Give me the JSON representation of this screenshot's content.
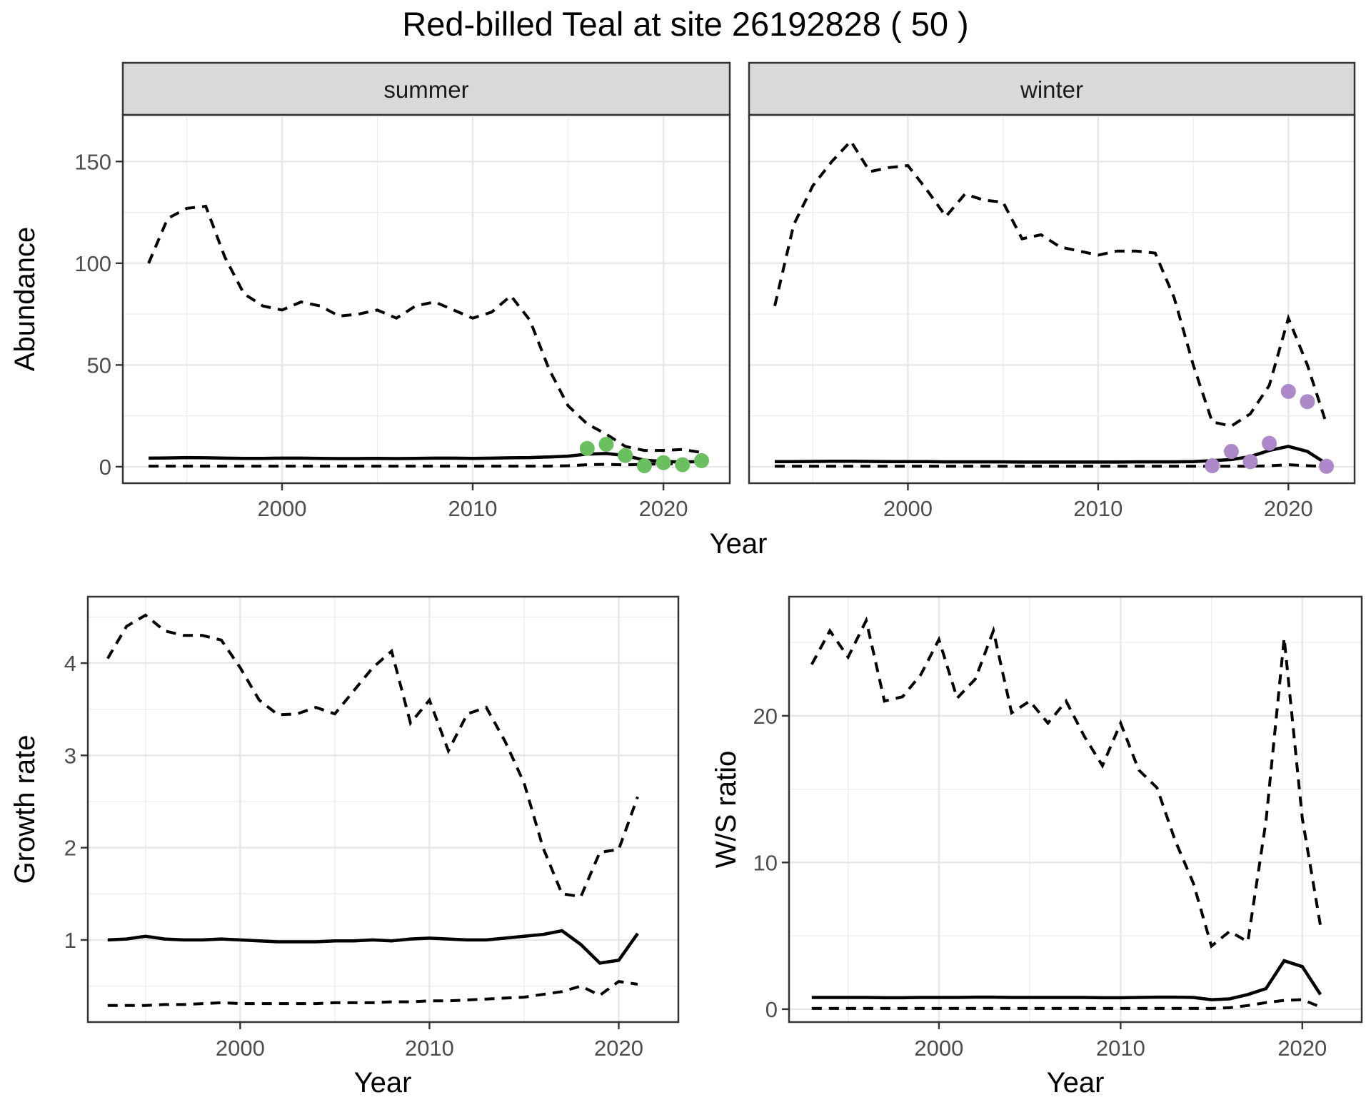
{
  "title": "Red-billed Teal at site 26192828 ( 50 )",
  "facets": {
    "summer_label": "summer",
    "winter_label": "winter"
  },
  "axis_titles": {
    "abundance": "Abundance",
    "year_top": "Year",
    "growth_rate": "Growth rate",
    "year_bottom_left": "Year",
    "ws_ratio": "W/S ratio",
    "year_bottom_right": "Year"
  },
  "colors": {
    "summer_points": "#6abf5f",
    "winter_points": "#ad89c9",
    "ci_line": "#000000",
    "median_line": "#000000",
    "strip_bg": "#d9d9d9",
    "grid_major": "#e7e7e7",
    "tick_text": "#4d4d4d",
    "panel_border": "#333333"
  },
  "chart_data": [
    {
      "id": "abundance_summer",
      "type": "line",
      "title": "summer",
      "xlabel": "Year",
      "ylabel": "Abundance",
      "x_ticks": [
        2000,
        2010,
        2020
      ],
      "y_ticks": [
        0,
        50,
        100,
        150
      ],
      "x_minor": [
        1995,
        2005,
        2015
      ],
      "y_minor": [
        25,
        75,
        125
      ],
      "xlim": [
        1991.65,
        2023.48
      ],
      "ylim": [
        -8.1,
        172.9
      ],
      "grid": true,
      "legend": false,
      "x": [
        1993,
        1994,
        1995,
        1996,
        1997,
        1998,
        1999,
        2000,
        2001,
        2002,
        2003,
        2004,
        2005,
        2006,
        2007,
        2008,
        2009,
        2010,
        2011,
        2012,
        2013,
        2014,
        2015,
        2016,
        2017,
        2018,
        2019,
        2020,
        2021,
        2022
      ],
      "series": [
        {
          "name": "upper_95ci",
          "style": "dashed",
          "values": [
            100,
            122,
            127,
            128,
            103,
            85,
            79,
            77,
            81,
            79,
            74,
            75,
            77,
            73,
            79,
            81,
            77,
            73,
            76,
            84,
            72,
            48,
            30,
            21,
            16,
            10,
            8,
            8,
            8.5,
            7
          ]
        },
        {
          "name": "median",
          "style": "solid",
          "values": [
            4.2,
            4.3,
            4.5,
            4.4,
            4.2,
            4.1,
            4.1,
            4.2,
            4.2,
            4.1,
            4.0,
            4.0,
            4.1,
            4.0,
            4.1,
            4.2,
            4.2,
            4.1,
            4.2,
            4.4,
            4.5,
            4.8,
            5.2,
            6.2,
            6.5,
            5.5,
            3.2,
            2.6,
            2.3,
            2.6
          ]
        },
        {
          "name": "lower_95ci",
          "style": "dashed",
          "values": [
            0.3,
            0.3,
            0.3,
            0.3,
            0.3,
            0.3,
            0.3,
            0.3,
            0.3,
            0.3,
            0.3,
            0.3,
            0.3,
            0.3,
            0.3,
            0.3,
            0.3,
            0.3,
            0.3,
            0.3,
            0.3,
            0.3,
            0.5,
            1.0,
            1.2,
            0.9,
            1.2,
            1.4,
            1.5,
            1.7
          ]
        }
      ],
      "points": {
        "name": "observed_counts",
        "color": "#6abf5f",
        "x": [
          2016,
          2017,
          2018,
          2019,
          2020,
          2021,
          2022
        ],
        "y": [
          9,
          11,
          5.5,
          0.5,
          2,
          1,
          3
        ]
      }
    },
    {
      "id": "abundance_winter",
      "type": "line",
      "title": "winter",
      "xlabel": "Year",
      "ylabel": "Abundance",
      "x_ticks": [
        2000,
        2010,
        2020
      ],
      "y_ticks": [
        0,
        50,
        100,
        150
      ],
      "x_minor": [
        1995,
        2005,
        2015
      ],
      "y_minor": [
        25,
        75,
        125
      ],
      "xlim": [
        1991.65,
        2023.48
      ],
      "ylim": [
        -8.1,
        172.9
      ],
      "grid": true,
      "legend": false,
      "x": [
        1993,
        1994,
        1995,
        1996,
        1997,
        1998,
        1999,
        2000,
        2001,
        2002,
        2003,
        2004,
        2005,
        2006,
        2007,
        2008,
        2009,
        2010,
        2011,
        2012,
        2013,
        2014,
        2015,
        2016,
        2017,
        2018,
        2019,
        2020,
        2021,
        2022
      ],
      "series": [
        {
          "name": "upper_95ci",
          "style": "dashed",
          "values": [
            79,
            119,
            138,
            150,
            160,
            145,
            147,
            148,
            136,
            123,
            134,
            131,
            130,
            112,
            114,
            108,
            106,
            104,
            106,
            106,
            105,
            83,
            50,
            22,
            20,
            26,
            40,
            73,
            50,
            21
          ]
        },
        {
          "name": "median",
          "style": "solid",
          "values": [
            2.5,
            2.5,
            2.6,
            2.7,
            2.7,
            2.6,
            2.5,
            2.5,
            2.5,
            2.4,
            2.4,
            2.4,
            2.4,
            2.3,
            2.3,
            2.3,
            2.3,
            2.3,
            2.3,
            2.4,
            2.4,
            2.4,
            2.5,
            3.0,
            3.5,
            5.0,
            8.0,
            10.0,
            7.5,
            1.5
          ]
        },
        {
          "name": "lower_95ci",
          "style": "dashed",
          "values": [
            0.2,
            0.2,
            0.2,
            0.2,
            0.2,
            0.2,
            0.2,
            0.2,
            0.2,
            0.2,
            0.2,
            0.2,
            0.2,
            0.2,
            0.2,
            0.2,
            0.2,
            0.2,
            0.2,
            0.2,
            0.2,
            0.2,
            0.2,
            0.2,
            0.2,
            0.2,
            0.5,
            1.0,
            0.5,
            0.1
          ]
        }
      ],
      "points": {
        "name": "observed_counts",
        "color": "#ad89c9",
        "x": [
          2016,
          2017,
          2018,
          2019,
          2020,
          2021,
          2022
        ],
        "y": [
          0.5,
          7.5,
          2.5,
          11.5,
          37,
          32,
          0.2
        ]
      }
    },
    {
      "id": "growth_rate",
      "type": "line",
      "title": "",
      "xlabel": "Year",
      "ylabel": "Growth rate",
      "x_ticks": [
        2000,
        2010,
        2020
      ],
      "y_ticks": [
        1,
        2,
        3,
        4
      ],
      "x_minor": [
        1995,
        2005,
        2015
      ],
      "y_minor": [
        0.5,
        1.5,
        2.5,
        3.5,
        4.5
      ],
      "xlim": [
        1991.95,
        2023.15
      ],
      "ylim": [
        0.11,
        4.72
      ],
      "grid": true,
      "legend": false,
      "x": [
        1993,
        1994,
        1995,
        1996,
        1997,
        1998,
        1999,
        2000,
        2001,
        2002,
        2003,
        2004,
        2005,
        2006,
        2007,
        2008,
        2009,
        2010,
        2011,
        2012,
        2013,
        2014,
        2015,
        2016,
        2017,
        2018,
        2019,
        2020,
        2021
      ],
      "series": [
        {
          "name": "upper_95ci",
          "style": "dashed",
          "values": [
            4.05,
            4.4,
            4.52,
            4.35,
            4.3,
            4.3,
            4.25,
            3.95,
            3.6,
            3.44,
            3.45,
            3.52,
            3.45,
            3.7,
            3.95,
            4.13,
            3.35,
            3.6,
            3.05,
            3.45,
            3.52,
            3.15,
            2.7,
            2.0,
            1.5,
            1.47,
            1.95,
            1.98,
            2.55
          ]
        },
        {
          "name": "median",
          "style": "solid",
          "values": [
            1.0,
            1.01,
            1.04,
            1.01,
            1.0,
            1.0,
            1.01,
            1.0,
            0.99,
            0.98,
            0.98,
            0.98,
            0.99,
            0.99,
            1.0,
            0.99,
            1.01,
            1.02,
            1.01,
            1.0,
            1.0,
            1.02,
            1.04,
            1.06,
            1.1,
            0.95,
            0.75,
            0.78,
            1.07
          ]
        },
        {
          "name": "lower_95ci",
          "style": "dashed",
          "values": [
            0.29,
            0.29,
            0.29,
            0.3,
            0.3,
            0.31,
            0.32,
            0.31,
            0.31,
            0.31,
            0.31,
            0.31,
            0.32,
            0.32,
            0.32,
            0.33,
            0.33,
            0.34,
            0.34,
            0.35,
            0.36,
            0.37,
            0.38,
            0.41,
            0.44,
            0.5,
            0.4,
            0.55,
            0.52
          ]
        }
      ]
    },
    {
      "id": "ws_ratio",
      "type": "line",
      "title": "",
      "xlabel": "Year",
      "ylabel": "W/S ratio",
      "x_ticks": [
        2000,
        2010,
        2020
      ],
      "y_ticks": [
        0,
        10,
        20
      ],
      "x_minor": [
        1995,
        2005,
        2015
      ],
      "y_minor": [
        5,
        15,
        25
      ],
      "xlim": [
        1991.75,
        2023.27
      ],
      "ylim": [
        -0.88,
        28.12
      ],
      "grid": true,
      "legend": false,
      "x": [
        1993,
        1994,
        1995,
        1996,
        1997,
        1998,
        1999,
        2000,
        2001,
        2002,
        2003,
        2004,
        2005,
        2006,
        2007,
        2008,
        2009,
        2010,
        2011,
        2012,
        2013,
        2014,
        2015,
        2016,
        2017,
        2018,
        2019,
        2020,
        2021
      ],
      "series": [
        {
          "name": "upper_95ci",
          "style": "dashed",
          "values": [
            23.5,
            25.8,
            24.0,
            26.5,
            21.0,
            21.3,
            22.8,
            25.2,
            21.2,
            22.5,
            25.8,
            20.2,
            21.0,
            19.5,
            21.0,
            18.6,
            16.6,
            19.5,
            16.3,
            15.1,
            11.5,
            8.6,
            4.3,
            5.3,
            4.6,
            12.8,
            25.3,
            13.0,
            5.7
          ]
        },
        {
          "name": "median",
          "style": "solid",
          "values": [
            0.8,
            0.8,
            0.8,
            0.8,
            0.78,
            0.78,
            0.8,
            0.8,
            0.8,
            0.82,
            0.82,
            0.8,
            0.8,
            0.8,
            0.8,
            0.8,
            0.78,
            0.78,
            0.8,
            0.82,
            0.82,
            0.8,
            0.65,
            0.7,
            1.0,
            1.4,
            3.3,
            2.9,
            1.0
          ]
        },
        {
          "name": "lower_95ci",
          "style": "dashed",
          "values": [
            0.05,
            0.05,
            0.05,
            0.05,
            0.05,
            0.05,
            0.05,
            0.05,
            0.05,
            0.05,
            0.05,
            0.05,
            0.05,
            0.05,
            0.05,
            0.05,
            0.05,
            0.05,
            0.05,
            0.05,
            0.05,
            0.05,
            0.05,
            0.1,
            0.25,
            0.45,
            0.6,
            0.65,
            0.15
          ]
        }
      ]
    }
  ]
}
